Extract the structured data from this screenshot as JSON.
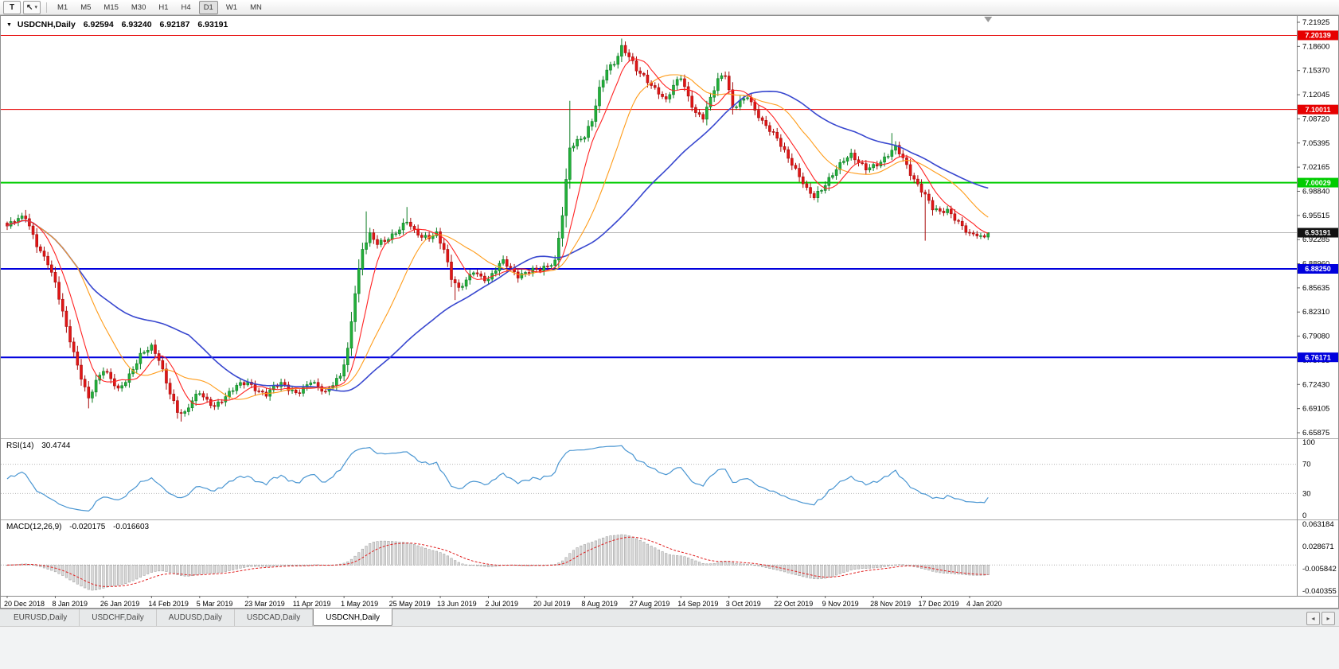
{
  "toolbar": {
    "text_tool_label": "T",
    "cursor_tool_glyph": "↖",
    "cursor_tool_caret": "▾",
    "timeframes": [
      "M1",
      "M5",
      "M15",
      "M30",
      "H1",
      "H4",
      "D1",
      "W1",
      "MN"
    ],
    "active_timeframe": "D1"
  },
  "chart": {
    "collapse_icon": "▼",
    "title": "USDCNH,Daily",
    "ohlc": {
      "open": "6.92594",
      "high": "6.93240",
      "low": "6.92187",
      "close": "6.93191"
    },
    "price_ticks": [
      "7.21925",
      "7.18600",
      "7.15370",
      "7.12045",
      "7.08720",
      "7.05395",
      "7.02165",
      "6.98840",
      "6.95515",
      "6.92285",
      "6.88960",
      "6.85635",
      "6.82310",
      "6.79080",
      "6.75755",
      "6.72430",
      "6.69105",
      "6.65875"
    ],
    "levels": [
      {
        "price": 7.20139,
        "label": "7.20139",
        "color": "#e60000",
        "width": 1
      },
      {
        "price": 7.10011,
        "label": "7.10011",
        "color": "#e60000",
        "width": 1
      },
      {
        "price": 7.00029,
        "label": "7.00029",
        "color": "#00cc00",
        "width": 2
      },
      {
        "price": 6.8825,
        "label": "6.88250",
        "color": "#0000dd",
        "width": 2
      },
      {
        "price": 6.76171,
        "label": "6.76171",
        "color": "#0000dd",
        "width": 2
      }
    ],
    "bid_line": {
      "price": 6.93191,
      "label": "6.93191",
      "line_color": "#b4b4b4",
      "badge_color": "#111111"
    },
    "colors": {
      "up_body": "#22b13a",
      "up_edge": "#0d7d24",
      "down_body": "#e11616",
      "down_edge": "#a80b0b",
      "scale_text": "#000000",
      "separator": "#9c9c9c",
      "shift_marker": "#9a9a9a"
    }
  },
  "rsi": {
    "name": "RSI(14)",
    "value": "30.4744",
    "scale_ticks": [
      "100",
      "70",
      "30",
      "0"
    ],
    "scale_values": [
      100,
      70,
      30,
      0
    ],
    "level_values": [
      70,
      30
    ],
    "line_color": "#4a96d2"
  },
  "macd": {
    "name": "MACD(12,26,9)",
    "value_main": "-0.020175",
    "value_signal": "-0.016603",
    "scale_ticks": [
      "0.063184",
      "0.028671",
      "-0.005842",
      "-0.040355"
    ],
    "scale_max": 0.063184,
    "scale_min": -0.040355,
    "bar_fill": "#d9d9d9",
    "bar_edge": "#9a9a9a",
    "signal_color": "#e02020",
    "zero_line_color": "#b0b0b0"
  },
  "tabs": {
    "items": [
      "EURUSD,Daily",
      "USDCHF,Daily",
      "AUDUSD,Daily",
      "USDCAD,Daily",
      "USDCNH,Daily"
    ],
    "active": "USDCNH,Daily",
    "scroll_left_icon": "◂",
    "scroll_right_icon": "▸"
  },
  "chart_data": {
    "type": "candlestick",
    "symbol": "USDCNH",
    "timeframe": "Daily",
    "current_ohlc": {
      "open": 6.92594,
      "high": 6.9324,
      "low": 6.92187,
      "close": 6.93191
    },
    "y_axis_range": [
      6.65875,
      7.21925
    ],
    "x_labels": [
      "20 Dec 2018",
      "8 Jan 2019",
      "26 Jan 2019",
      "14 Feb 2019",
      "5 Mar 2019",
      "23 Mar 2019",
      "11 Apr 2019",
      "1 May 2019",
      "25 May 2019",
      "13 Jun 2019",
      "2 Jul 2019",
      "20 Jul 2019",
      "8 Aug 2019",
      "27 Aug 2019",
      "14 Sep 2019",
      "3 Oct 2019",
      "22 Oct 2019",
      "9 Nov 2019",
      "28 Nov 2019",
      "17 Dec 2019",
      "4 Jan 2020"
    ],
    "bars_per_label": 13,
    "horizontal_lines": [
      {
        "price": 7.20139,
        "color": "red",
        "role": "resistance"
      },
      {
        "price": 7.10011,
        "color": "red",
        "role": "resistance"
      },
      {
        "price": 7.00029,
        "color": "green",
        "role": "level"
      },
      {
        "price": 6.8825,
        "color": "blue",
        "role": "support"
      },
      {
        "price": 6.76171,
        "color": "blue",
        "role": "support"
      }
    ],
    "candles": {
      "count": 266,
      "anchors": [
        [
          0,
          6.941
        ],
        [
          3,
          6.948
        ],
        [
          5,
          6.952
        ],
        [
          8,
          6.918
        ],
        [
          11,
          6.892
        ],
        [
          13,
          6.861
        ],
        [
          16,
          6.8
        ],
        [
          19,
          6.752
        ],
        [
          22,
          6.708
        ],
        [
          24,
          6.728
        ],
        [
          26,
          6.742
        ],
        [
          28,
          6.73
        ],
        [
          30,
          6.718
        ],
        [
          33,
          6.74
        ],
        [
          36,
          6.764
        ],
        [
          39,
          6.773
        ],
        [
          41,
          6.758
        ],
        [
          44,
          6.716
        ],
        [
          46,
          6.69
        ],
        [
          48,
          6.684
        ],
        [
          50,
          6.7
        ],
        [
          52,
          6.712
        ],
        [
          54,
          6.703
        ],
        [
          56,
          6.698
        ],
        [
          58,
          6.705
        ],
        [
          60,
          6.712
        ],
        [
          62,
          6.72
        ],
        [
          65,
          6.727
        ],
        [
          68,
          6.718
        ],
        [
          70,
          6.713
        ],
        [
          72,
          6.72
        ],
        [
          74,
          6.723
        ],
        [
          76,
          6.717
        ],
        [
          78,
          6.714
        ],
        [
          80,
          6.722
        ],
        [
          82,
          6.731
        ],
        [
          84,
          6.72
        ],
        [
          86,
          6.71
        ],
        [
          88,
          6.724
        ],
        [
          90,
          6.738
        ],
        [
          92,
          6.775
        ],
        [
          94,
          6.852
        ],
        [
          96,
          6.908
        ],
        [
          98,
          6.926
        ],
        [
          100,
          6.916
        ],
        [
          102,
          6.923
        ],
        [
          104,
          6.931
        ],
        [
          106,
          6.938
        ],
        [
          108,
          6.946
        ],
        [
          110,
          6.931
        ],
        [
          112,
          6.925
        ],
        [
          114,
          6.928
        ],
        [
          116,
          6.934
        ],
        [
          118,
          6.91
        ],
        [
          120,
          6.868
        ],
        [
          122,
          6.852
        ],
        [
          124,
          6.866
        ],
        [
          126,
          6.882
        ],
        [
          128,
          6.874
        ],
        [
          130,
          6.868
        ],
        [
          132,
          6.88
        ],
        [
          134,
          6.891
        ],
        [
          136,
          6.882
        ],
        [
          138,
          6.875
        ],
        [
          140,
          6.88
        ],
        [
          142,
          6.882
        ],
        [
          144,
          6.879
        ],
        [
          146,
          6.883
        ],
        [
          148,
          6.892
        ],
        [
          150,
          6.96
        ],
        [
          152,
          7.051
        ],
        [
          154,
          7.057
        ],
        [
          156,
          7.061
        ],
        [
          158,
          7.082
        ],
        [
          160,
          7.128
        ],
        [
          162,
          7.158
        ],
        [
          164,
          7.166
        ],
        [
          166,
          7.185
        ],
        [
          168,
          7.17
        ],
        [
          170,
          7.152
        ],
        [
          172,
          7.145
        ],
        [
          174,
          7.136
        ],
        [
          176,
          7.126
        ],
        [
          178,
          7.112
        ],
        [
          180,
          7.13
        ],
        [
          182,
          7.142
        ],
        [
          184,
          7.117
        ],
        [
          186,
          7.098
        ],
        [
          188,
          7.092
        ],
        [
          190,
          7.115
        ],
        [
          192,
          7.138
        ],
        [
          194,
          7.146
        ],
        [
          196,
          7.103
        ],
        [
          198,
          7.114
        ],
        [
          200,
          7.121
        ],
        [
          202,
          7.098
        ],
        [
          204,
          7.08
        ],
        [
          206,
          7.07
        ],
        [
          208,
          7.062
        ],
        [
          210,
          7.046
        ],
        [
          212,
          7.028
        ],
        [
          214,
          7.008
        ],
        [
          216,
          6.988
        ],
        [
          218,
          6.979
        ],
        [
          220,
          6.992
        ],
        [
          222,
          7.008
        ],
        [
          224,
          7.021
        ],
        [
          226,
          7.03
        ],
        [
          228,
          7.035
        ],
        [
          230,
          7.026
        ],
        [
          232,
          7.021
        ],
        [
          234,
          7.026
        ],
        [
          236,
          7.03
        ],
        [
          238,
          7.037
        ],
        [
          240,
          7.046
        ],
        [
          242,
          7.032
        ],
        [
          244,
          7.014
        ],
        [
          246,
          7.0
        ],
        [
          248,
          6.985
        ],
        [
          250,
          6.964
        ],
        [
          252,
          6.957
        ],
        [
          254,
          6.961
        ],
        [
          256,
          6.953
        ],
        [
          258,
          6.944
        ],
        [
          260,
          6.931
        ],
        [
          262,
          6.928
        ],
        [
          264,
          6.926
        ],
        [
          265,
          6.932
        ]
      ],
      "wick_overrides": {
        "5": {
          "high": 6.963
        },
        "22": {
          "low": 6.692
        },
        "47": {
          "low": 6.674
        },
        "97": {
          "high": 6.961
        },
        "108": {
          "high": 6.967
        },
        "121": {
          "low": 6.84
        },
        "152": {
          "high": 7.112
        },
        "166": {
          "high": 7.197
        },
        "194": {
          "high": 7.152
        },
        "239": {
          "high": 7.068
        },
        "248": {
          "low": 6.921
        },
        "265": {
          "high": 6.9324,
          "low": 6.92187
        }
      }
    },
    "moving_averages": [
      {
        "period": 50,
        "color": "#3847cf",
        "width": 1.6
      },
      {
        "period": 20,
        "color": "#ff9c1a",
        "width": 1.1
      },
      {
        "period": 8,
        "color": "#ff2222",
        "width": 1.1
      }
    ],
    "indicators": [
      {
        "name": "RSI",
        "period": 14,
        "last_value": 30.4744,
        "range": [
          0,
          100
        ],
        "levels": [
          70,
          30
        ]
      },
      {
        "name": "MACD",
        "fast": 12,
        "slow": 26,
        "signal": 9,
        "last_main": -0.020175,
        "last_signal": -0.016603,
        "scale": [
          -0.040355,
          0.063184
        ]
      }
    ]
  }
}
